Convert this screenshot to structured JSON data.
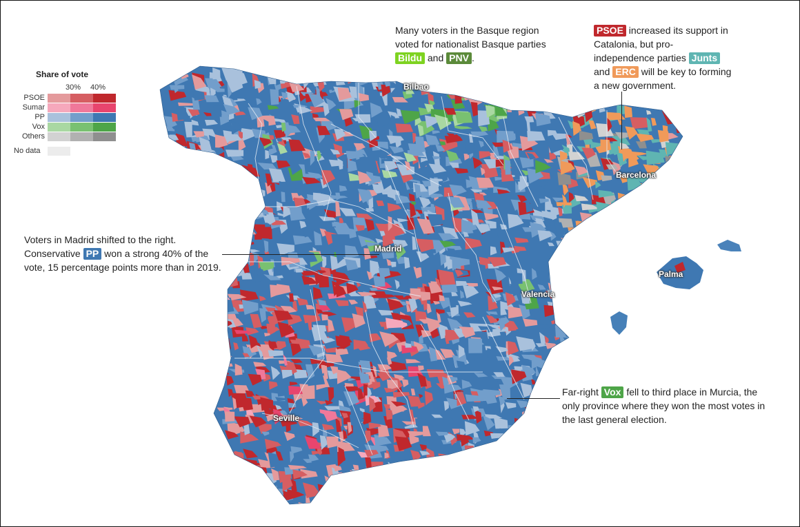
{
  "legend": {
    "title": "Share of vote",
    "thresholds": [
      "30%",
      "40%"
    ],
    "rows": [
      {
        "label": "PSOE",
        "colors": [
          "#e49a9c",
          "#d65e62",
          "#c0282d"
        ]
      },
      {
        "label": "Sumar",
        "colors": [
          "#f6a8bc",
          "#f0789a",
          "#e8456e"
        ]
      },
      {
        "label": "PP",
        "colors": [
          "#a9c1dc",
          "#729ecb",
          "#3f78b2"
        ]
      },
      {
        "label": "Vox",
        "colors": [
          "#a9d8a2",
          "#79c171",
          "#4ea548"
        ]
      },
      {
        "label": "Others",
        "colors": [
          "#d2d2d2",
          "#b1b1b1",
          "#8f8f8f"
        ]
      }
    ],
    "no_data": {
      "label": "No data",
      "color": "#ececec"
    }
  },
  "party_colors": {
    "PSOE": "#c0282d",
    "PP": "#3f78b2",
    "Vox": "#4ea548",
    "Bildu": "#7ed321",
    "PNV": "#5b8a3a",
    "Junts": "#5fb5b2",
    "ERC": "#f09a5a"
  },
  "annotations": {
    "basque": {
      "line1": "Many voters in the Basque region",
      "line2": "voted for nationalist Basque parties",
      "tag1": "Bildu",
      "and": "and",
      "tag2": "PNV",
      "end": "."
    },
    "catalonia": {
      "tag1": "PSOE",
      "text1": "increased its support in",
      "line2": "Catalonia, but pro-",
      "line3": "independence parties",
      "tag2": "Junts",
      "and": "and",
      "tag3": "ERC",
      "text3": "will be key to forming",
      "line5": "a new government."
    },
    "madrid": {
      "line1": "Voters in Madrid shifted to the right.",
      "pre": "Conservative",
      "tag": "PP",
      "post": "won a strong 40% of the",
      "line3": "vote, 15 percentage points more than in 2019."
    },
    "murcia": {
      "pre": "Far-right",
      "tag": "Vox",
      "post": "fell to third place in Murcia, the",
      "line2": "only province where they won the most votes in",
      "line3": "the last general election."
    }
  },
  "cities": {
    "bilbao": "Bilbao",
    "barcelona": "Barcelona",
    "madrid": "Madrid",
    "palma": "Palma",
    "valencia": "Valencia",
    "seville": "Seville"
  }
}
